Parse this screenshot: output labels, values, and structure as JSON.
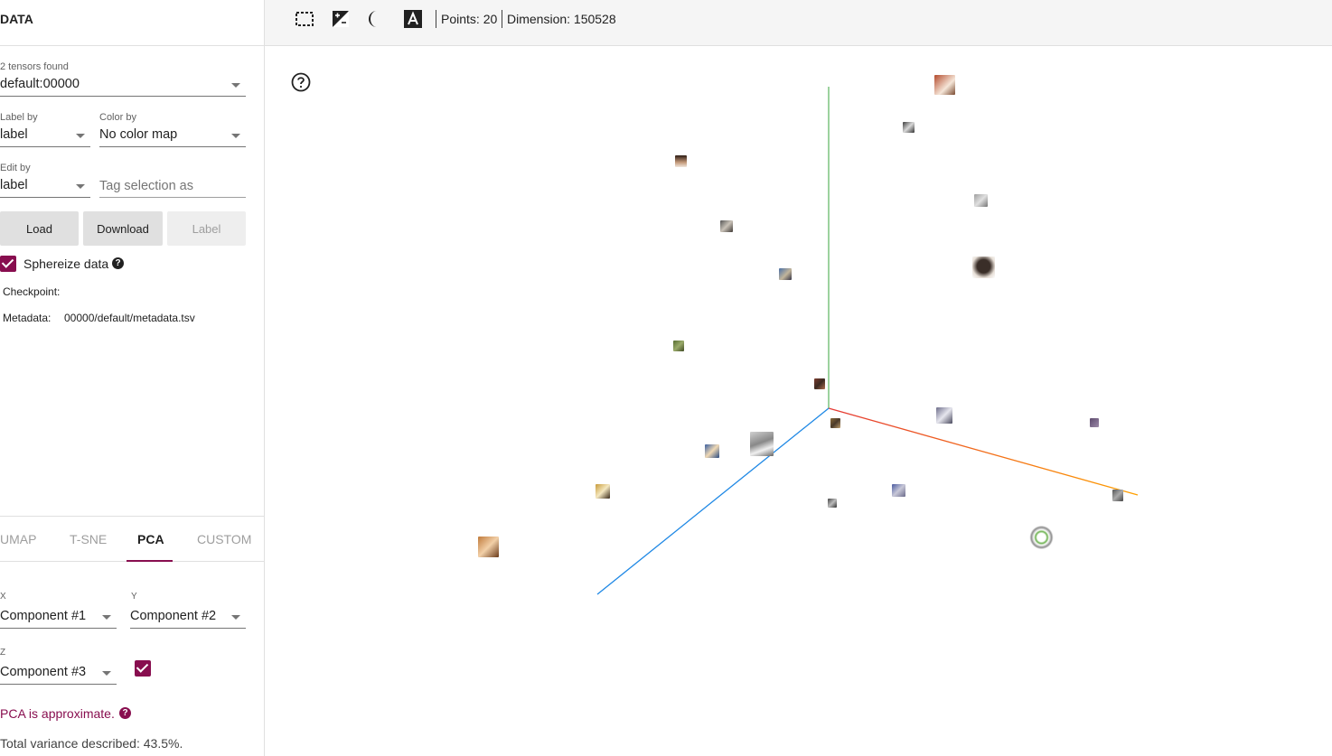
{
  "sidebar": {
    "title": "DATA",
    "tensors_found": "2 tensors found",
    "tensor_value": "default:00000",
    "label_by_label": "Label by",
    "label_by_value": "label",
    "color_by_label": "Color by",
    "color_by_value": "No color map",
    "edit_by_label": "Edit by",
    "edit_by_value": "label",
    "tag_placeholder": "Tag selection as",
    "load_button": "Load",
    "download_button": "Download",
    "label_button": "Label",
    "sphereize_label": "Sphereize data",
    "sphereize_checked": true,
    "checkpoint_label": "Checkpoint:",
    "metadata_label": "Metadata:",
    "metadata_value": "00000/default/metadata.tsv"
  },
  "projection_tabs": [
    "UMAP",
    "T-SNE",
    "PCA",
    "CUSTOM"
  ],
  "active_tab": "PCA",
  "pca": {
    "x_label": "X",
    "x_value": "Component #1",
    "y_label": "Y",
    "y_value": "Component #2",
    "z_label": "Z",
    "z_value": "Component #3",
    "z_enabled": true,
    "approx_text": "PCA is approximate.",
    "variance_text": "Total variance described: 43.5%."
  },
  "toolbar": {
    "icons": [
      "select-rectangle-icon",
      "night-mode-icon",
      "contrast-icon",
      "label-toggle-icon"
    ],
    "points_text": "Points: 20",
    "dimension_text": "Dimension: 150528"
  },
  "colors": {
    "accent": "#880e4f",
    "axis_x": "#e53935",
    "axis_y": "#66bb6a",
    "axis_z": "#1e88e5"
  }
}
